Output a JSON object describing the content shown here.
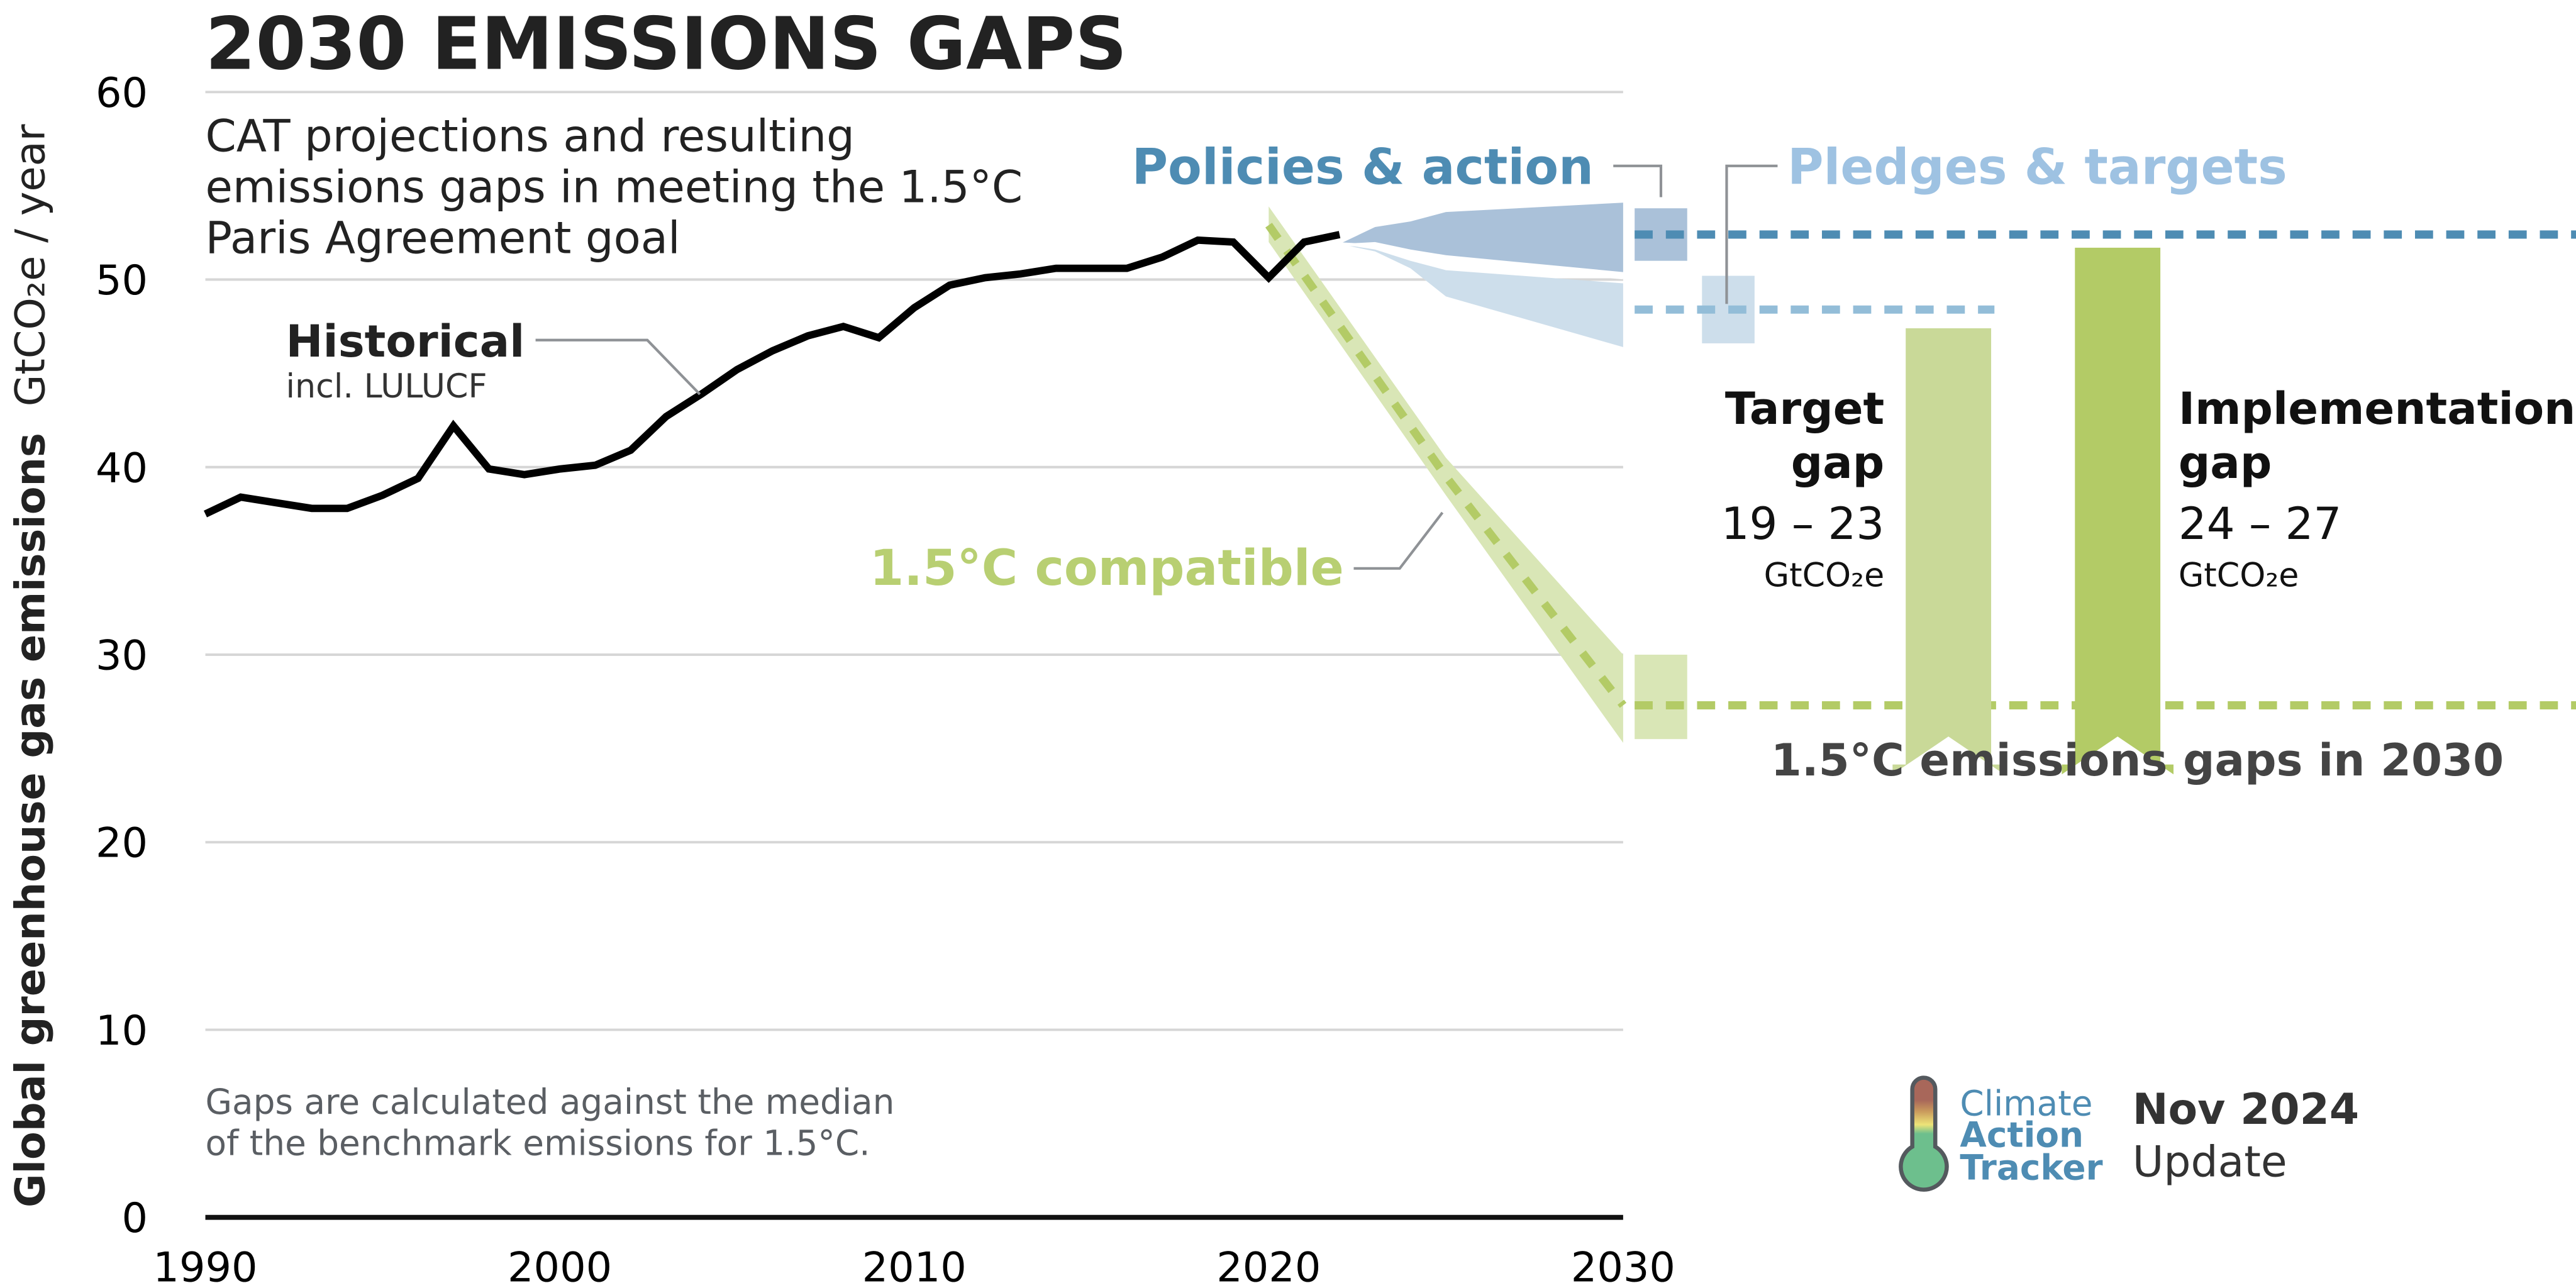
{
  "chart_data": {
    "type": "line",
    "title": "2030 EMISSIONS GAPS",
    "subtitle": [
      "CAT projections and resulting",
      "emissions gaps in meeting the 1.5°C",
      "Paris Agreement goal"
    ],
    "xlabel": "",
    "ylabel": "Global greenhouse gas emissions",
    "ylabel_unit": "GtCO₂e / year",
    "xlim": [
      1990,
      2030
    ],
    "ylim": [
      0,
      60
    ],
    "grid": true,
    "x_ticks": [
      1990,
      2000,
      2010,
      2020,
      2030
    ],
    "x_tick_labels": [
      "1990",
      "2000",
      "2010",
      "2020",
      "2030"
    ],
    "y_ticks": [
      0,
      10,
      20,
      30,
      40,
      50,
      60
    ],
    "y_tick_labels": [
      "0",
      "10",
      "20",
      "30",
      "40",
      "50",
      "60"
    ],
    "series": [
      {
        "name": "Historical",
        "sublabel": "incl. LULUCF",
        "color": "#000000",
        "x": [
          1990,
          1991,
          1992,
          1993,
          1994,
          1995,
          1996,
          1997,
          1998,
          1999,
          2000,
          2001,
          2002,
          2003,
          2004,
          2005,
          2006,
          2007,
          2008,
          2009,
          2010,
          2011,
          2012,
          2013,
          2014,
          2015,
          2016,
          2017,
          2018,
          2019,
          2020,
          2021,
          2022
        ],
        "values": [
          37.5,
          38.4,
          38.1,
          37.8,
          37.8,
          38.5,
          39.4,
          42.2,
          39.9,
          39.6,
          39.9,
          40.1,
          40.9,
          42.7,
          43.9,
          45.2,
          46.2,
          47.0,
          47.5,
          46.9,
          48.5,
          49.7,
          50.1,
          50.3,
          50.6,
          50.6,
          50.6,
          51.2,
          52.1,
          52.0,
          50.1,
          52.0,
          52.4
        ]
      },
      {
        "name": "Policies & action",
        "type": "range",
        "color": "#aac1d9",
        "x": [
          2022,
          2023,
          2024,
          2025,
          2030
        ],
        "upper": [
          51.9,
          52.8,
          53.1,
          53.6,
          54.1
        ],
        "lower": [
          51.9,
          52.0,
          51.6,
          51.3,
          50.4
        ],
        "bar_2030": [
          51.0,
          53.8
        ],
        "median_2030": 52.4
      },
      {
        "name": "Pledges & targets",
        "type": "range",
        "color": "#cddeeb",
        "x": [
          2022,
          2023,
          2024,
          2025,
          2030
        ],
        "upper": [
          51.9,
          51.6,
          51.0,
          50.5,
          49.8
        ],
        "lower": [
          51.9,
          51.5,
          50.6,
          49.1,
          46.4
        ],
        "bar_2030": [
          46.6,
          50.2
        ],
        "median_2030": 48.4
      },
      {
        "name": "1.5°C compatible",
        "type": "range",
        "color": "#d9e6b6",
        "line_color": "#b3cb66",
        "x": [
          2020,
          2025,
          2030
        ],
        "upper": [
          53.9,
          40.5,
          30.0
        ],
        "lower": [
          52.0,
          38.5,
          25.3
        ],
        "median": [
          52.9,
          39.5,
          27.3
        ],
        "bar_2030": [
          25.5,
          30.0
        ],
        "median_2030": 27.3
      }
    ],
    "reference_lines": [
      {
        "name": "Policies & action median 2030",
        "value": 52.4,
        "color": "#4e8cb3"
      },
      {
        "name": "Pledges & targets median 2030",
        "value": 48.4,
        "color": "#93bdd8"
      },
      {
        "name": "1.5°C median 2030",
        "value": 27.3,
        "color": "#b3cb66"
      }
    ],
    "gaps": [
      {
        "title_lines": [
          "Target",
          "gap"
        ],
        "range": "19 – 23",
        "unit": "GtCO₂e",
        "from": 47.4,
        "to": 28.0,
        "color": "#c9d998"
      },
      {
        "title_lines": [
          "Implementation",
          "gap"
        ],
        "range": "24 – 27",
        "unit": "GtCO₂e",
        "from": 51.7,
        "to": 28.0,
        "color": "#b3cb66"
      }
    ],
    "gaps_caption": "1.5°C emissions gaps in 2030",
    "footnote": [
      "Gaps are calculated against the median",
      "of the benchmark emissions for 1.5°C."
    ]
  },
  "branding": {
    "logo_line1": "Climate",
    "logo_line2": "Action",
    "logo_line3": "Tracker",
    "update_line1": "Nov 2024",
    "update_line2": "Update"
  },
  "icons": {
    "logo": "thermometer-icon"
  }
}
